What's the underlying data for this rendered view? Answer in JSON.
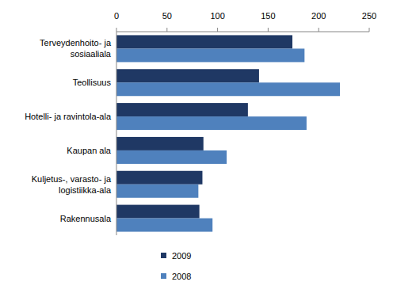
{
  "chart_data": {
    "type": "bar",
    "orientation": "horizontal",
    "categories": [
      "Terveydenhoito- ja sosiaaliala",
      "Teollisuus",
      "Hotelli- ja ravintola-ala",
      "Kaupan ala",
      "Kuljetus-, varasto- ja logistiikka-ala",
      "Rakennusala"
    ],
    "series": [
      {
        "name": "2009",
        "color": "#1f3864",
        "values": [
          174,
          141,
          130,
          86,
          85,
          82
        ]
      },
      {
        "name": "2008",
        "color": "#4f81bd",
        "values": [
          186,
          221,
          188,
          109,
          81,
          95
        ]
      }
    ],
    "xlim": [
      0,
      250
    ],
    "xticks": [
      0,
      50,
      100,
      150,
      200,
      250
    ],
    "grid": false,
    "legend": "bottom"
  }
}
